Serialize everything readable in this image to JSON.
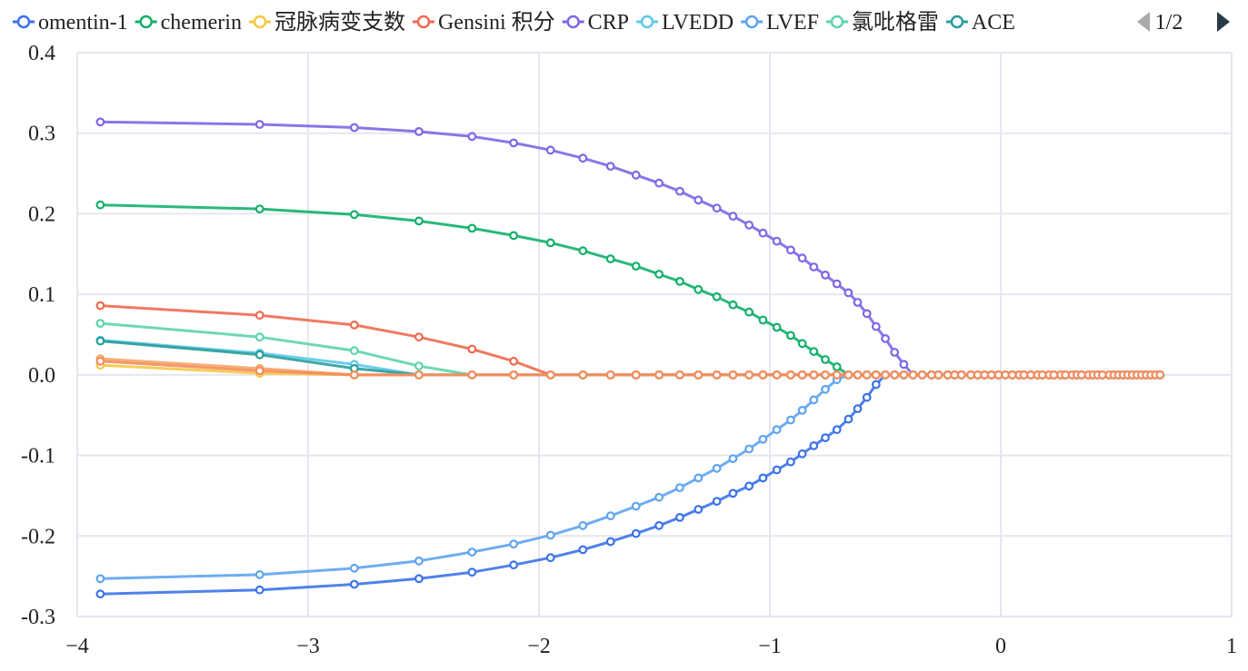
{
  "legend": {
    "page_indicator": "1/2",
    "prev_icon": "triangle-left-icon",
    "next_icon": "triangle-right-icon"
  },
  "chart_data": {
    "type": "line",
    "title": "",
    "xlabel": "",
    "ylabel": "",
    "xlim": [
      -4,
      1
    ],
    "ylim": [
      -0.3,
      0.4
    ],
    "x_ticks": [
      -4,
      -3,
      -2,
      -1,
      0,
      1
    ],
    "x_tick_labels": [
      "−4",
      "−3",
      "−2",
      "−1",
      "0",
      "1"
    ],
    "y_ticks": [
      0.4,
      0.3,
      0.2,
      0.1,
      0.0,
      -0.1,
      -0.2,
      -0.3
    ],
    "y_tick_labels": [
      "0.4",
      "0.3",
      "0.2",
      "0.1",
      "0.0",
      "-0.1",
      "-0.2",
      "-0.3"
    ],
    "grid": true,
    "legend_position": "top",
    "lambda_log": [
      -3.9,
      -3.21,
      -2.8,
      -2.52,
      -2.29,
      -2.11,
      -1.95,
      -1.81,
      -1.69,
      -1.58,
      -1.48,
      -1.39,
      -1.31,
      -1.23,
      -1.16,
      -1.09,
      -1.03,
      -0.97,
      -0.91,
      -0.86,
      -0.81,
      -0.76,
      -0.71,
      -0.66,
      -0.62,
      -0.58,
      -0.54,
      -0.5,
      -0.46,
      -0.42,
      -0.38,
      -0.34,
      -0.3,
      -0.27,
      -0.23,
      -0.2,
      -0.17,
      -0.13,
      -0.1,
      -0.07,
      -0.04,
      -0.01,
      0.02,
      0.05,
      0.08,
      0.1,
      0.13,
      0.16,
      0.18,
      0.21,
      0.23,
      0.26,
      0.28,
      0.31,
      0.33,
      0.35,
      0.38,
      0.4,
      0.42,
      0.44,
      0.47,
      0.49,
      0.51,
      0.53,
      0.55,
      0.57,
      0.59,
      0.61,
      0.63,
      0.65,
      0.67,
      0.69
    ],
    "series": [
      {
        "name": "omentin-1",
        "color": "#3b73e8",
        "points": [
          [
            -3.9,
            -0.272
          ],
          [
            -3.21,
            -0.267
          ],
          [
            -2.8,
            -0.26
          ],
          [
            -2.52,
            -0.253
          ],
          [
            -2.29,
            -0.245
          ],
          [
            -2.11,
            -0.236
          ],
          [
            -1.95,
            -0.227
          ],
          [
            -1.81,
            -0.217
          ],
          [
            -1.69,
            -0.207
          ],
          [
            -1.58,
            -0.197
          ],
          [
            -1.48,
            -0.187
          ],
          [
            -1.39,
            -0.177
          ],
          [
            -1.31,
            -0.167
          ],
          [
            -1.23,
            -0.157
          ],
          [
            -1.16,
            -0.147
          ],
          [
            -1.09,
            -0.138
          ],
          [
            -1.03,
            -0.128
          ],
          [
            -0.97,
            -0.118
          ],
          [
            -0.91,
            -0.108
          ],
          [
            -0.86,
            -0.098
          ],
          [
            -0.81,
            -0.088
          ],
          [
            -0.76,
            -0.078
          ],
          [
            -0.71,
            -0.068
          ],
          [
            -0.66,
            -0.055
          ],
          [
            -0.62,
            -0.042
          ],
          [
            -0.58,
            -0.028
          ],
          [
            -0.54,
            -0.012
          ],
          [
            -0.5,
            0.0
          ]
        ]
      },
      {
        "name": "chemerin",
        "color": "#12b06a",
        "points": [
          [
            -3.9,
            0.211
          ],
          [
            -3.21,
            0.206
          ],
          [
            -2.8,
            0.199
          ],
          [
            -2.52,
            0.191
          ],
          [
            -2.29,
            0.182
          ],
          [
            -2.11,
            0.173
          ],
          [
            -1.95,
            0.164
          ],
          [
            -1.81,
            0.154
          ],
          [
            -1.69,
            0.144
          ],
          [
            -1.58,
            0.135
          ],
          [
            -1.48,
            0.125
          ],
          [
            -1.39,
            0.116
          ],
          [
            -1.31,
            0.106
          ],
          [
            -1.23,
            0.097
          ],
          [
            -1.16,
            0.087
          ],
          [
            -1.09,
            0.078
          ],
          [
            -1.03,
            0.068
          ],
          [
            -0.97,
            0.059
          ],
          [
            -0.91,
            0.049
          ],
          [
            -0.86,
            0.039
          ],
          [
            -0.81,
            0.029
          ],
          [
            -0.76,
            0.019
          ],
          [
            -0.71,
            0.01
          ],
          [
            -0.66,
            0.0
          ]
        ]
      },
      {
        "name": "冠脉病变支数",
        "color": "#f5c842",
        "points": [
          [
            -3.9,
            0.012
          ],
          [
            -3.21,
            0.002
          ],
          [
            -2.8,
            0.0
          ]
        ]
      },
      {
        "name": "Gensini 积分",
        "color": "#ee6a4f",
        "points": [
          [
            -3.9,
            0.086
          ],
          [
            -3.21,
            0.074
          ],
          [
            -2.8,
            0.062
          ],
          [
            -2.52,
            0.047
          ],
          [
            -2.29,
            0.032
          ],
          [
            -2.11,
            0.017
          ],
          [
            -1.95,
            0.0
          ]
        ]
      },
      {
        "name": "CRP",
        "color": "#8066e6",
        "points": [
          [
            -3.9,
            0.314
          ],
          [
            -3.21,
            0.311
          ],
          [
            -2.8,
            0.307
          ],
          [
            -2.52,
            0.302
          ],
          [
            -2.29,
            0.296
          ],
          [
            -2.11,
            0.288
          ],
          [
            -1.95,
            0.279
          ],
          [
            -1.81,
            0.269
          ],
          [
            -1.69,
            0.259
          ],
          [
            -1.58,
            0.248
          ],
          [
            -1.48,
            0.238
          ],
          [
            -1.39,
            0.228
          ],
          [
            -1.31,
            0.217
          ],
          [
            -1.23,
            0.207
          ],
          [
            -1.16,
            0.197
          ],
          [
            -1.09,
            0.186
          ],
          [
            -1.03,
            0.176
          ],
          [
            -0.97,
            0.166
          ],
          [
            -0.91,
            0.155
          ],
          [
            -0.86,
            0.145
          ],
          [
            -0.81,
            0.134
          ],
          [
            -0.76,
            0.124
          ],
          [
            -0.71,
            0.113
          ],
          [
            -0.66,
            0.102
          ],
          [
            -0.62,
            0.09
          ],
          [
            -0.58,
            0.076
          ],
          [
            -0.54,
            0.06
          ],
          [
            -0.5,
            0.045
          ],
          [
            -0.46,
            0.028
          ],
          [
            -0.42,
            0.013
          ],
          [
            -0.38,
            0.0
          ]
        ]
      },
      {
        "name": "LVEDD",
        "color": "#5cc8ea",
        "points": [
          [
            -3.9,
            0.043
          ],
          [
            -3.21,
            0.027
          ],
          [
            -2.8,
            0.013
          ],
          [
            -2.52,
            0.0
          ]
        ]
      },
      {
        "name": "LVEF",
        "color": "#5ea4ef",
        "points": [
          [
            -3.9,
            -0.253
          ],
          [
            -3.21,
            -0.248
          ],
          [
            -2.8,
            -0.24
          ],
          [
            -2.52,
            -0.231
          ],
          [
            -2.29,
            -0.22
          ],
          [
            -2.11,
            -0.21
          ],
          [
            -1.95,
            -0.199
          ],
          [
            -1.81,
            -0.187
          ],
          [
            -1.69,
            -0.175
          ],
          [
            -1.58,
            -0.163
          ],
          [
            -1.48,
            -0.152
          ],
          [
            -1.39,
            -0.14
          ],
          [
            -1.31,
            -0.128
          ],
          [
            -1.23,
            -0.116
          ],
          [
            -1.16,
            -0.104
          ],
          [
            -1.09,
            -0.092
          ],
          [
            -1.03,
            -0.08
          ],
          [
            -0.97,
            -0.068
          ],
          [
            -0.91,
            -0.056
          ],
          [
            -0.86,
            -0.044
          ],
          [
            -0.81,
            -0.031
          ],
          [
            -0.76,
            -0.018
          ],
          [
            -0.71,
            -0.006
          ],
          [
            -0.66,
            0.0
          ]
        ]
      },
      {
        "name": "氯吡格雷",
        "color": "#5ed4a8",
        "points": [
          [
            -3.9,
            0.064
          ],
          [
            -3.21,
            0.047
          ],
          [
            -2.8,
            0.03
          ],
          [
            -2.52,
            0.011
          ],
          [
            -2.29,
            0.0
          ]
        ]
      },
      {
        "name": "ACE",
        "color": "#2a9d9a",
        "points": [
          [
            -3.9,
            0.042
          ],
          [
            -3.21,
            0.025
          ],
          [
            -2.8,
            0.008
          ],
          [
            -2.52,
            0.0
          ]
        ]
      },
      {
        "name": "",
        "color": "#f5a66a",
        "points": [
          [
            -3.9,
            0.02
          ],
          [
            -3.21,
            0.008
          ],
          [
            -2.8,
            0.0
          ]
        ]
      },
      {
        "name": "",
        "color": "#f58c5e",
        "points": [
          [
            -3.9,
            0.017
          ],
          [
            -3.21,
            0.005
          ],
          [
            -2.8,
            0.0
          ]
        ]
      }
    ]
  }
}
